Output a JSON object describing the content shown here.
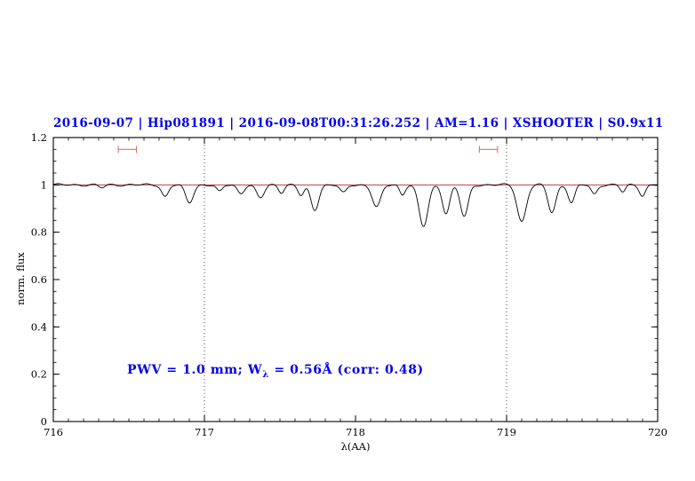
{
  "title": "2016-09-07 | Hip081891 | 2016-09-08T00:31:26.252 | AM=1.16 | XSHOOTER | S0.9x11",
  "annotation": {
    "prefix": "PWV = 1.0 mm; W",
    "sub": "λ",
    "suffix": " = 0.56Å (corr: 0.48)"
  },
  "colors": {
    "accent_blue": "#0000ee",
    "continuum_red": "#bb2222",
    "marker_red": "#dd7070",
    "spectrum_black": "#000000"
  },
  "chart_data": {
    "type": "line",
    "title": "2016-09-07 | Hip081891 | 2016-09-08T00:31:26.252 | AM=1.16 | XSHOOTER | S0.9x11",
    "xlabel": "λ(AA)",
    "ylabel": "norm. flux",
    "xlim": [
      716,
      720
    ],
    "ylim": [
      0,
      1.2
    ],
    "grid": false,
    "x_ticks": {
      "values": [
        716,
        717,
        718,
        719,
        720
      ],
      "labels": [
        "716",
        "717",
        "718",
        "719",
        "720"
      ],
      "minor_step": 0.1
    },
    "y_ticks": {
      "values": [
        0,
        0.2,
        0.4,
        0.6,
        0.8,
        1,
        1.2
      ],
      "labels": [
        "0",
        "0.2",
        "0.4",
        "0.6",
        "0.8",
        "1",
        "1.2"
      ],
      "minor_step": 0.05
    },
    "vlines": {
      "x": [
        717,
        719
      ],
      "style": "dotted",
      "color": "#444444"
    },
    "continuum_line": {
      "y": 1.0,
      "color": "#bb2222"
    },
    "marker_color": "#dd7070",
    "range_markers": [
      {
        "x_center": 716.49,
        "half_width": 0.06,
        "y": 1.15
      },
      {
        "x_center": 718.88,
        "half_width": 0.06,
        "y": 1.15
      }
    ],
    "series": [
      {
        "name": "observed spectrum",
        "color": "#000000",
        "continuum": 1.0,
        "noise": {
          "amp1": 0.0035,
          "freq1": 53.1,
          "amp2": 0.0025,
          "freq2": 23.7,
          "phase2": 2.0
        },
        "absorption_lines": [
          {
            "center": 716.32,
            "depth": 0.012,
            "sigma": 0.02
          },
          {
            "center": 716.74,
            "depth": 0.05,
            "sigma": 0.022
          },
          {
            "center": 716.9,
            "depth": 0.075,
            "sigma": 0.026
          },
          {
            "center": 717.1,
            "depth": 0.03,
            "sigma": 0.02
          },
          {
            "center": 717.24,
            "depth": 0.035,
            "sigma": 0.022
          },
          {
            "center": 717.37,
            "depth": 0.055,
            "sigma": 0.026
          },
          {
            "center": 717.51,
            "depth": 0.03,
            "sigma": 0.018
          },
          {
            "center": 717.64,
            "depth": 0.045,
            "sigma": 0.02
          },
          {
            "center": 717.73,
            "depth": 0.105,
            "sigma": 0.026
          },
          {
            "center": 717.92,
            "depth": 0.035,
            "sigma": 0.022
          },
          {
            "center": 718.14,
            "depth": 0.095,
            "sigma": 0.028
          },
          {
            "center": 718.31,
            "depth": 0.04,
            "sigma": 0.018
          },
          {
            "center": 718.45,
            "depth": 0.175,
            "sigma": 0.03
          },
          {
            "center": 718.6,
            "depth": 0.12,
            "sigma": 0.024
          },
          {
            "center": 718.72,
            "depth": 0.135,
            "sigma": 0.026
          },
          {
            "center": 719.1,
            "depth": 0.155,
            "sigma": 0.03
          },
          {
            "center": 719.3,
            "depth": 0.115,
            "sigma": 0.026
          },
          {
            "center": 719.43,
            "depth": 0.075,
            "sigma": 0.022
          },
          {
            "center": 719.58,
            "depth": 0.04,
            "sigma": 0.02
          },
          {
            "center": 719.77,
            "depth": 0.03,
            "sigma": 0.018
          },
          {
            "center": 719.9,
            "depth": 0.045,
            "sigma": 0.02
          }
        ]
      }
    ]
  }
}
